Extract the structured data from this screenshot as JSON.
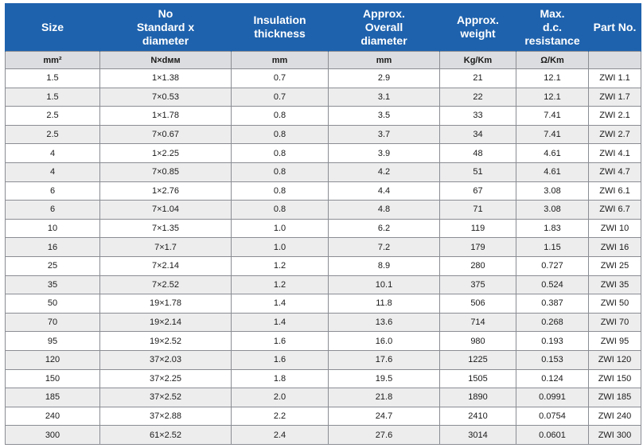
{
  "headers": [
    "Size",
    "No\nStandard x\ndiameter",
    "Insulation\nthickness",
    "Approx.\nOverall\ndiameter",
    "Approx.\nweight",
    "Max.\nd.c.\nresistance",
    "Part No."
  ],
  "units": [
    "mm²",
    "N×dмм",
    "mm",
    "mm",
    "Kg/Km",
    "Ω/Km",
    ""
  ],
  "rows": [
    [
      "1.5",
      "1×1.38",
      "0.7",
      "2.9",
      "21",
      "12.1",
      "ZWI 1.1"
    ],
    [
      "1.5",
      "7×0.53",
      "0.7",
      "3.1",
      "22",
      "12.1",
      "ZWI 1.7"
    ],
    [
      "2.5",
      "1×1.78",
      "0.8",
      "3.5",
      "33",
      "7.41",
      "ZWI 2.1"
    ],
    [
      "2.5",
      "7×0.67",
      "0.8",
      "3.7",
      "34",
      "7.41",
      "ZWI 2.7"
    ],
    [
      "4",
      "1×2.25",
      "0.8",
      "3.9",
      "48",
      "4.61",
      "ZWI 4.1"
    ],
    [
      "4",
      "7×0.85",
      "0.8",
      "4.2",
      "51",
      "4.61",
      "ZWI 4.7"
    ],
    [
      "6",
      "1×2.76",
      "0.8",
      "4.4",
      "67",
      "3.08",
      "ZWI 6.1"
    ],
    [
      "6",
      "7×1.04",
      "0.8",
      "4.8",
      "71",
      "3.08",
      "ZWI 6.7"
    ],
    [
      "10",
      "7×1.35",
      "1.0",
      "6.2",
      "119",
      "1.83",
      "ZWI 10"
    ],
    [
      "16",
      "7×1.7",
      "1.0",
      "7.2",
      "179",
      "1.15",
      "ZWI 16"
    ],
    [
      "25",
      "7×2.14",
      "1.2",
      "8.9",
      "280",
      "0.727",
      "ZWI 25"
    ],
    [
      "35",
      "7×2.52",
      "1.2",
      "10.1",
      "375",
      "0.524",
      "ZWI 35"
    ],
    [
      "50",
      "19×1.78",
      "1.4",
      "11.8",
      "506",
      "0.387",
      "ZWI 50"
    ],
    [
      "70",
      "19×2.14",
      "1.4",
      "13.6",
      "714",
      "0.268",
      "ZWI 70"
    ],
    [
      "95",
      "19×2.52",
      "1.6",
      "16.0",
      "980",
      "0.193",
      "ZWI 95"
    ],
    [
      "120",
      "37×2.03",
      "1.6",
      "17.6",
      "1225",
      "0.153",
      "ZWI 120"
    ],
    [
      "150",
      "37×2.25",
      "1.8",
      "19.5",
      "1505",
      "0.124",
      "ZWI 150"
    ],
    [
      "185",
      "37×2.52",
      "2.0",
      "21.8",
      "1890",
      "0.0991",
      "ZWI 185"
    ],
    [
      "240",
      "37×2.88",
      "2.2",
      "24.7",
      "2410",
      "0.0754",
      "ZWI 240"
    ],
    [
      "300",
      "61×2.52",
      "2.4",
      "27.6",
      "3014",
      "0.0601",
      "ZWI 300"
    ]
  ],
  "colors": {
    "header_bg": "#1e62ad",
    "units_bg": "#dcdde0",
    "stripe_bg": "#ededee",
    "border": "#8a8d93"
  }
}
